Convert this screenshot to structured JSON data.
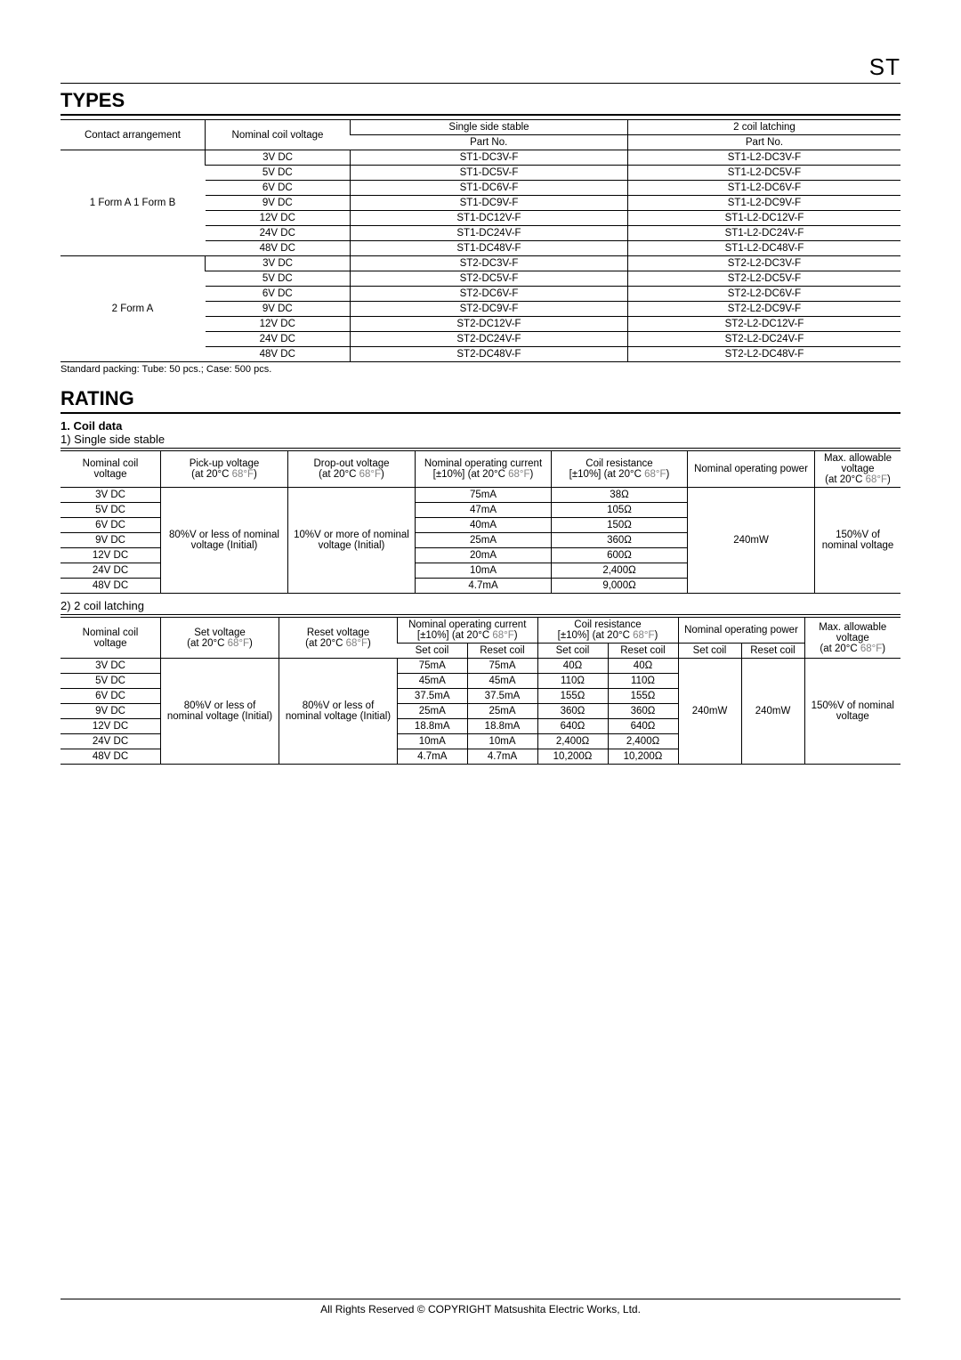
{
  "page_label": "ST",
  "types": {
    "title": "TYPES",
    "note": "Standard packing: Tube: 50 pcs.; Case: 500 pcs.",
    "headers": {
      "contact": "Contact arrangement",
      "nominal": "Nominal coil voltage",
      "single": "Single side stable",
      "latching": "2 coil latching",
      "partno": "Part No."
    },
    "groups": [
      {
        "contact": "1 Form A 1 Form B",
        "rows": [
          {
            "v": "3V DC",
            "s": "ST1-DC3V-F",
            "l": "ST1-L2-DC3V-F"
          },
          {
            "v": "5V DC",
            "s": "ST1-DC5V-F",
            "l": "ST1-L2-DC5V-F"
          },
          {
            "v": "6V DC",
            "s": "ST1-DC6V-F",
            "l": "ST1-L2-DC6V-F"
          },
          {
            "v": "9V DC",
            "s": "ST1-DC9V-F",
            "l": "ST1-L2-DC9V-F"
          },
          {
            "v": "12V DC",
            "s": "ST1-DC12V-F",
            "l": "ST1-L2-DC12V-F"
          },
          {
            "v": "24V DC",
            "s": "ST1-DC24V-F",
            "l": "ST1-L2-DC24V-F"
          },
          {
            "v": "48V DC",
            "s": "ST1-DC48V-F",
            "l": "ST1-L2-DC48V-F"
          }
        ]
      },
      {
        "contact": "2 Form A",
        "rows": [
          {
            "v": "3V DC",
            "s": "ST2-DC3V-F",
            "l": "ST2-L2-DC3V-F"
          },
          {
            "v": "5V DC",
            "s": "ST2-DC5V-F",
            "l": "ST2-L2-DC5V-F"
          },
          {
            "v": "6V DC",
            "s": "ST2-DC6V-F",
            "l": "ST2-L2-DC6V-F"
          },
          {
            "v": "9V DC",
            "s": "ST2-DC9V-F",
            "l": "ST2-L2-DC9V-F"
          },
          {
            "v": "12V DC",
            "s": "ST2-DC12V-F",
            "l": "ST2-L2-DC12V-F"
          },
          {
            "v": "24V DC",
            "s": "ST2-DC24V-F",
            "l": "ST2-L2-DC24V-F"
          },
          {
            "v": "48V DC",
            "s": "ST2-DC48V-F",
            "l": "ST2-L2-DC48V-F"
          }
        ]
      }
    ]
  },
  "rating": {
    "title": "RATING",
    "coil_heading": "1. Coil data",
    "single_heading": "1) Single side stable",
    "latching_heading": "2) 2 coil latching",
    "temp_note_black": "(at 20°C ",
    "temp_note_gray": "68°F",
    "temp_note_close": ")",
    "single": {
      "headers": {
        "c1": "Nominal coil voltage",
        "c2": "Pick-up voltage",
        "c3": "Drop-out voltage",
        "c4a": "Nominal operating current",
        "c4b": "[±10%] (at 20°C ",
        "c5a": "Coil resistance",
        "c5b": "[±10%] (at 20°C ",
        "c6": "Nominal operating power",
        "c7": "Max. allowable voltage"
      },
      "merged": {
        "pickup": "80%V or less of nominal voltage (Initial)",
        "dropout": "10%V or more of nominal voltage (Initial)",
        "power": "240mW",
        "max": "150%V of nominal voltage"
      },
      "rows": [
        {
          "v": "3V DC",
          "i": "75mA",
          "r": "38Ω"
        },
        {
          "v": "5V DC",
          "i": "47mA",
          "r": "105Ω"
        },
        {
          "v": "6V DC",
          "i": "40mA",
          "r": "150Ω"
        },
        {
          "v": "9V DC",
          "i": "25mA",
          "r": "360Ω"
        },
        {
          "v": "12V DC",
          "i": "20mA",
          "r": "600Ω"
        },
        {
          "v": "24V DC",
          "i": "10mA",
          "r": "2,400Ω"
        },
        {
          "v": "48V DC",
          "i": "4.7mA",
          "r": "9,000Ω"
        }
      ]
    },
    "latching": {
      "headers": {
        "c1": "Nominal coil voltage",
        "c2": "Set voltage",
        "c3": "Reset voltage",
        "c4a": "Nominal operating current",
        "c4b": "[±10%] (at 20°C ",
        "c5a": "Coil resistance",
        "c5b": "[±10%] (at 20°C ",
        "c6": "Nominal operating power",
        "c7": "Max. allowable voltage",
        "set": "Set coil",
        "reset": "Reset coil"
      },
      "merged": {
        "set": "80%V or less of nominal voltage (Initial)",
        "reset": "80%V or less of nominal voltage (Initial)",
        "power_set": "240mW",
        "power_reset": "240mW",
        "max": "150%V of nominal voltage"
      },
      "rows": [
        {
          "v": "3V DC",
          "is": "75mA",
          "ir": "75mA",
          "rs": "40Ω",
          "rr": "40Ω"
        },
        {
          "v": "5V DC",
          "is": "45mA",
          "ir": "45mA",
          "rs": "110Ω",
          "rr": "110Ω"
        },
        {
          "v": "6V DC",
          "is": "37.5mA",
          "ir": "37.5mA",
          "rs": "155Ω",
          "rr": "155Ω"
        },
        {
          "v": "9V DC",
          "is": "25mA",
          "ir": "25mA",
          "rs": "360Ω",
          "rr": "360Ω"
        },
        {
          "v": "12V DC",
          "is": "18.8mA",
          "ir": "18.8mA",
          "rs": "640Ω",
          "rr": "640Ω"
        },
        {
          "v": "24V DC",
          "is": "10mA",
          "ir": "10mA",
          "rs": "2,400Ω",
          "rr": "2,400Ω"
        },
        {
          "v": "48V DC",
          "is": "4.7mA",
          "ir": "4.7mA",
          "rs": "10,200Ω",
          "rr": "10,200Ω"
        }
      ]
    }
  },
  "footer": "All Rights Reserved © COPYRIGHT Matsushita Electric Works, Ltd."
}
